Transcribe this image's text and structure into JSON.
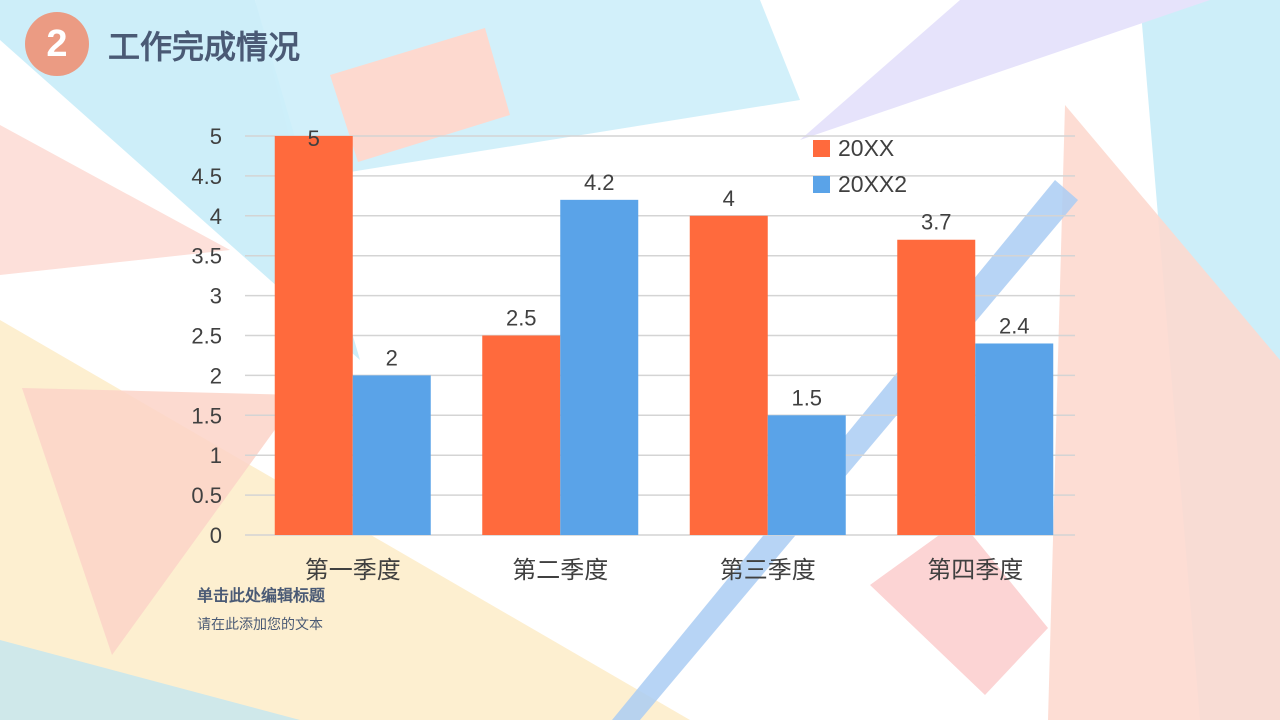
{
  "header": {
    "number": "2",
    "title": "工作完成情况"
  },
  "footer": {
    "heading": "单击此处编辑标题",
    "body": "请在此添加您的文本"
  },
  "colors": {
    "series1": "#ff6a3d",
    "series2": "#5aa3e8",
    "text": "#4a5a75"
  },
  "chart_data": {
    "type": "bar",
    "categories": [
      "第一季度",
      "第二季度",
      "第三季度",
      "第四季度"
    ],
    "series": [
      {
        "name": "20XX",
        "values": [
          5,
          2.5,
          4,
          3.7
        ]
      },
      {
        "name": "20XX2",
        "values": [
          2,
          4.2,
          1.5,
          2.4
        ]
      }
    ],
    "ylim": [
      0,
      5
    ],
    "yticks": [
      "0",
      "0.5",
      "1",
      "1.5",
      "2",
      "2.5",
      "3",
      "3.5",
      "4",
      "4.5",
      "5"
    ],
    "grid": true,
    "legend": "top-right"
  }
}
